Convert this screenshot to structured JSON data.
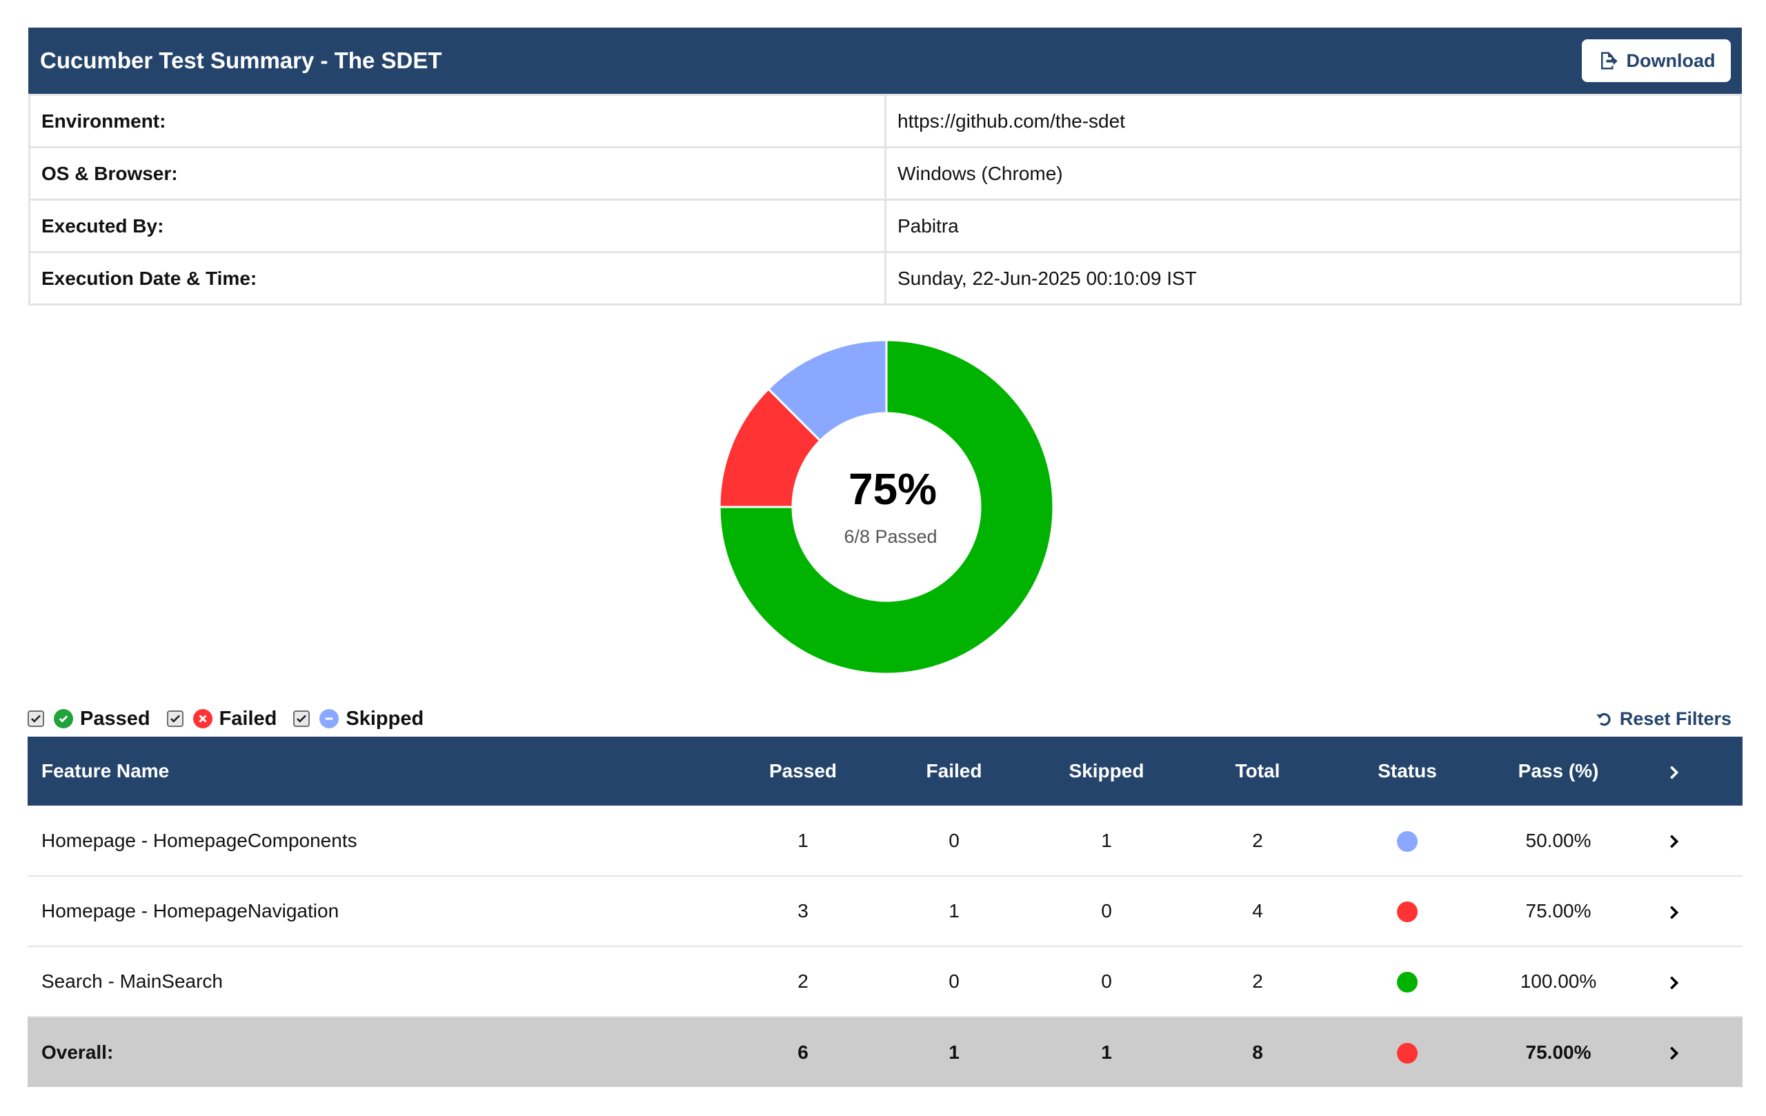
{
  "header": {
    "title": "Cucumber Test Summary - The SDET",
    "download_label": "Download"
  },
  "info": [
    {
      "label": "Environment:",
      "value": "https://github.com/the-sdet"
    },
    {
      "label": "OS & Browser:",
      "value": "Windows (Chrome)"
    },
    {
      "label": "Executed By:",
      "value": "Pabitra"
    },
    {
      "label": "Execution Date & Time:",
      "value": "Sunday, 22-Jun-2025 00:10:09 IST"
    }
  ],
  "chart_data": {
    "type": "pie",
    "categories": [
      "Passed",
      "Failed",
      "Skipped"
    ],
    "values": [
      6,
      1,
      1
    ],
    "colors": [
      "#00b300",
      "#ff3333",
      "#8aa8ff"
    ],
    "center_value": "75%",
    "center_label": "6/8 Passed"
  },
  "filters": {
    "items": [
      {
        "label": "Passed",
        "checked": true,
        "icon": "check-circle-icon",
        "color": "#1fa33a"
      },
      {
        "label": "Failed",
        "checked": true,
        "icon": "x-circle-icon",
        "color": "#ff3333"
      },
      {
        "label": "Skipped",
        "checked": true,
        "icon": "minus-circle-icon",
        "color": "#8aa8ff"
      }
    ],
    "reset_label": "Reset Filters"
  },
  "table": {
    "headers": [
      "Feature Name",
      "Passed",
      "Failed",
      "Skipped",
      "Total",
      "Status",
      "Pass (%)"
    ],
    "rows": [
      {
        "name": "Homepage - HomepageComponents",
        "passed": "1",
        "failed": "0",
        "skipped": "1",
        "total": "2",
        "status_color": "#8aa8ff",
        "pass_pct": "50.00%"
      },
      {
        "name": "Homepage - HomepageNavigation",
        "passed": "3",
        "failed": "1",
        "skipped": "0",
        "total": "4",
        "status_color": "#ff3333",
        "pass_pct": "75.00%"
      },
      {
        "name": "Search - MainSearch",
        "passed": "2",
        "failed": "0",
        "skipped": "0",
        "total": "2",
        "status_color": "#00b300",
        "pass_pct": "100.00%"
      }
    ],
    "overall": {
      "name": "Overall:",
      "passed": "6",
      "failed": "1",
      "skipped": "1",
      "total": "8",
      "status_color": "#ff3333",
      "pass_pct": "75.00%"
    }
  },
  "colors": {
    "header_bg": "#24446b",
    "passed": "#00b300",
    "failed": "#ff3333",
    "skipped": "#8aa8ff"
  }
}
